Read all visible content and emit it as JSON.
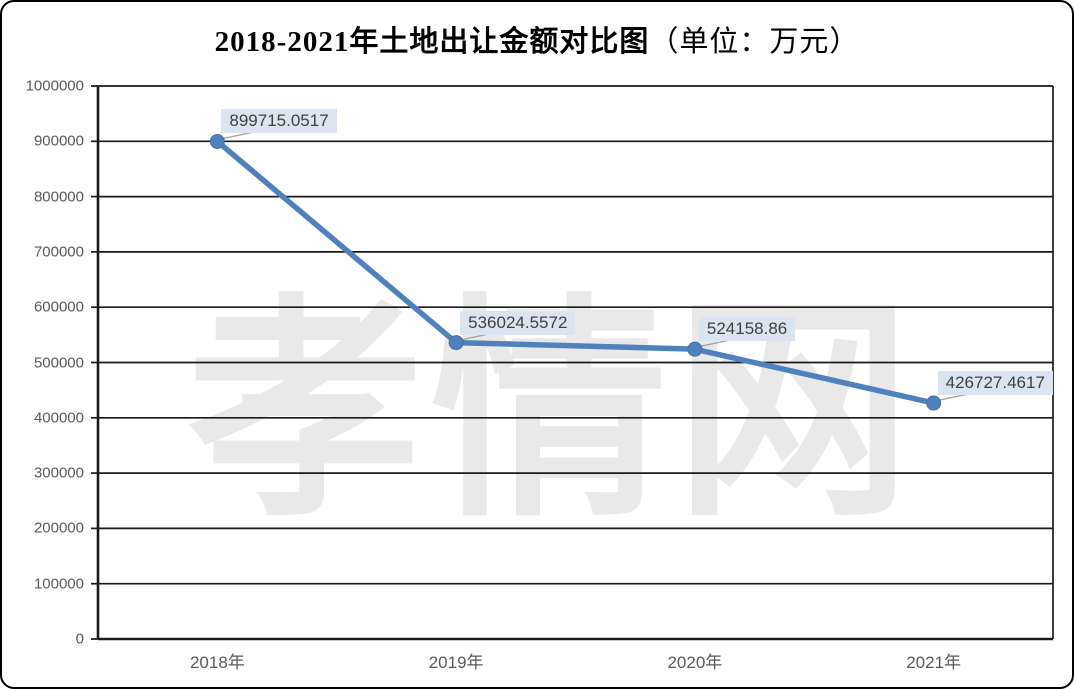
{
  "title": {
    "main": "2018-2021年土地出让金额对比图",
    "unit": "（单位：万元）"
  },
  "watermark": "孝情网",
  "chart_data": {
    "type": "line",
    "title": "2018-2021年土地出让金额对比图（单位：万元）",
    "categories": [
      "2018年",
      "2019年",
      "2020年",
      "2021年"
    ],
    "values": [
      899715.0517,
      536024.5572,
      524158.86,
      426727.4617
    ],
    "data_labels": [
      "899715.0517",
      "536024.5572",
      "524158.86",
      "426727.4617"
    ],
    "xlabel": "",
    "ylabel": "",
    "ylim": [
      0,
      1000000
    ],
    "ytick_interval": 100000,
    "ytick_labels": [
      "0",
      "100000",
      "200000",
      "300000",
      "400000",
      "500000",
      "600000",
      "700000",
      "800000",
      "900000",
      "1000000"
    ],
    "grid": "horizontal-only",
    "legend": "none",
    "colors": {
      "line": "#4f81bd",
      "marker": "#4f81bd",
      "marker_edge": "#456f9e",
      "label_bg": "#dbe5f1",
      "label_text": "#404040",
      "axis_text": "#595959",
      "gridline": "#1a1a1a",
      "leader_line": "#a6a6a6",
      "watermark": "#e9e9e9"
    }
  }
}
